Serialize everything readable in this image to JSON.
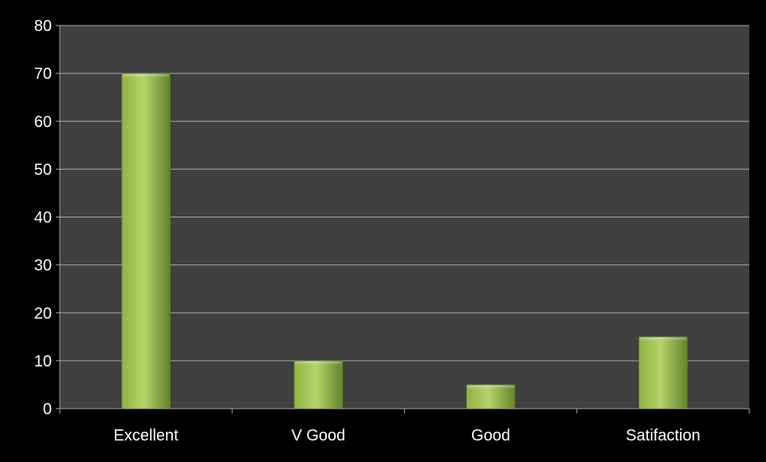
{
  "chart_data": {
    "type": "bar",
    "title": "",
    "xlabel": "",
    "ylabel": "",
    "categories": [
      "Excellent",
      "V Good",
      "Good",
      "Satifaction"
    ],
    "series": [
      {
        "values": [
          70,
          10,
          5,
          15
        ]
      }
    ],
    "ylim": [
      0,
      80
    ],
    "yticks": [
      0,
      10,
      20,
      30,
      40,
      50,
      60,
      70,
      80
    ],
    "grid": true,
    "legend": "none"
  },
  "colors": {
    "page_background": "#000000",
    "plot_background": "#404040",
    "gridline": "#a6a6a6",
    "axis_text": "#ffffff",
    "bar_light": "#b6d36a",
    "bar_mid": "#8fb340",
    "bar_dark": "#64832c"
  }
}
